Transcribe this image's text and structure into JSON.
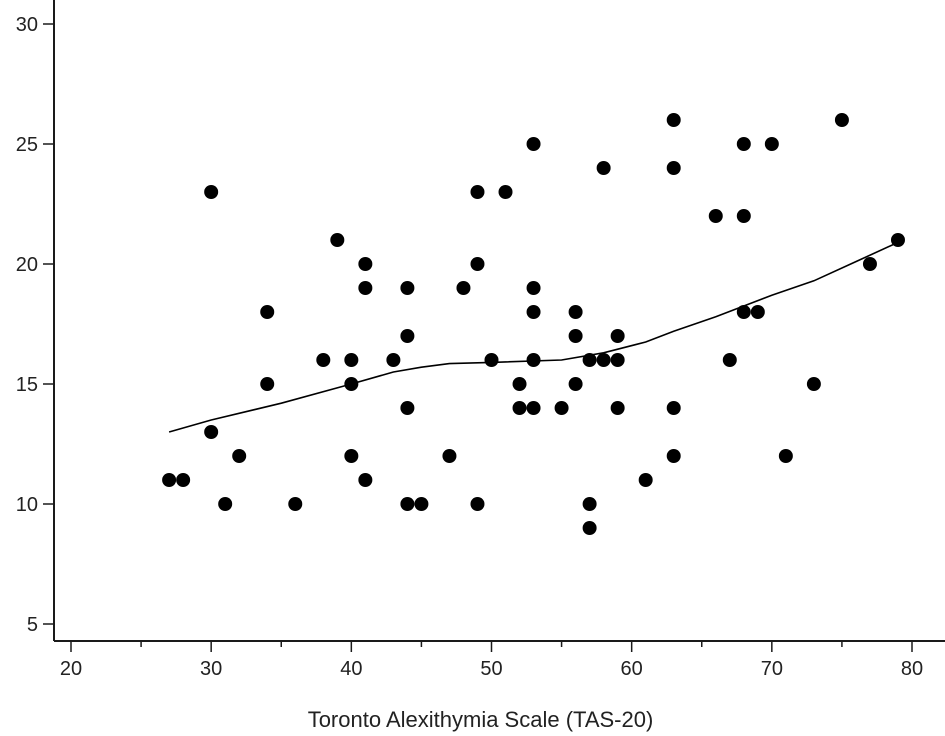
{
  "chart_data": {
    "type": "scatter",
    "xlabel": "Toronto Alexithymia Scale (TAS-20)",
    "ylabel": "",
    "xlim": [
      20,
      80
    ],
    "ylim": [
      5,
      30
    ],
    "x_ticks": [
      20,
      30,
      40,
      50,
      60,
      70,
      80
    ],
    "y_ticks": [
      5,
      10,
      15,
      20,
      25,
      30
    ],
    "grid": false,
    "legend": "none",
    "colors": {
      "points": "#000000",
      "trend": "#000000",
      "axis": "#1a1a1a"
    },
    "points": [
      [
        27,
        11
      ],
      [
        28,
        11
      ],
      [
        30,
        23
      ],
      [
        30,
        13
      ],
      [
        31,
        10
      ],
      [
        32,
        12
      ],
      [
        34,
        18
      ],
      [
        34,
        15
      ],
      [
        36,
        10
      ],
      [
        38,
        16
      ],
      [
        39,
        21
      ],
      [
        40,
        16
      ],
      [
        40,
        15
      ],
      [
        40,
        12
      ],
      [
        41,
        20
      ],
      [
        41,
        19
      ],
      [
        41,
        11
      ],
      [
        43,
        16
      ],
      [
        44,
        19
      ],
      [
        44,
        17
      ],
      [
        44,
        14
      ],
      [
        44,
        10
      ],
      [
        45,
        10
      ],
      [
        47,
        12
      ],
      [
        48,
        19
      ],
      [
        49,
        23
      ],
      [
        49,
        20
      ],
      [
        49,
        10
      ],
      [
        50,
        16
      ],
      [
        51,
        23
      ],
      [
        52,
        15
      ],
      [
        52,
        14
      ],
      [
        53,
        25
      ],
      [
        53,
        19
      ],
      [
        53,
        18
      ],
      [
        53,
        16
      ],
      [
        53,
        14
      ],
      [
        55,
        14
      ],
      [
        56,
        18
      ],
      [
        56,
        17
      ],
      [
        56,
        15
      ],
      [
        57,
        16
      ],
      [
        57,
        10
      ],
      [
        57,
        9
      ],
      [
        58,
        24
      ],
      [
        58,
        16
      ],
      [
        59,
        17
      ],
      [
        59,
        16
      ],
      [
        59,
        14
      ],
      [
        61,
        11
      ],
      [
        63,
        26
      ],
      [
        63,
        24
      ],
      [
        63,
        14
      ],
      [
        63,
        12
      ],
      [
        66,
        22
      ],
      [
        67,
        16
      ],
      [
        68,
        25
      ],
      [
        68,
        22
      ],
      [
        68,
        18
      ],
      [
        69,
        18
      ],
      [
        70,
        25
      ],
      [
        71,
        12
      ],
      [
        73,
        15
      ],
      [
        75,
        26
      ],
      [
        77,
        20
      ],
      [
        79,
        21
      ]
    ],
    "trend_line": [
      [
        27,
        13
      ],
      [
        30,
        13.5
      ],
      [
        35,
        14.2
      ],
      [
        40,
        15
      ],
      [
        43,
        15.5
      ],
      [
        45,
        15.7
      ],
      [
        47,
        15.85
      ],
      [
        50,
        15.9
      ],
      [
        55,
        16
      ],
      [
        58,
        16.3
      ],
      [
        61,
        16.75
      ],
      [
        63,
        17.2
      ],
      [
        66,
        17.8
      ],
      [
        70,
        18.7
      ],
      [
        73,
        19.3
      ],
      [
        76,
        20.1
      ],
      [
        79,
        20.9
      ]
    ]
  }
}
